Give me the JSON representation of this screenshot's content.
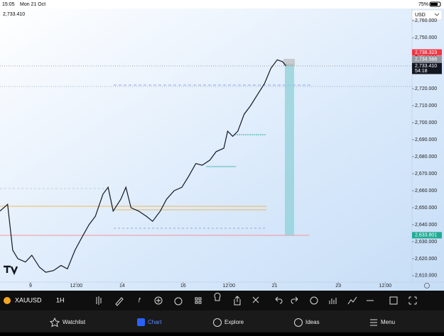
{
  "status_bar": {
    "time": "15:05",
    "date": "Mon 21 Oct",
    "battery": "75%"
  },
  "chart": {
    "type": "line",
    "price_label": "2,733.410",
    "currency": "USD",
    "x": [
      0,
      6,
      10,
      14,
      20,
      25,
      31,
      36,
      42,
      48,
      53,
      59,
      64,
      70,
      75,
      81,
      85,
      89,
      95,
      99,
      103,
      109,
      115,
      120,
      126,
      131,
      137,
      143,
      148,
      154,
      159,
      165,
      170,
      176,
      179,
      183,
      187,
      192,
      197,
      202,
      208,
      213,
      218,
      222,
      225
    ],
    "values": [
      2648,
      2652,
      2625,
      2620,
      2618,
      2622,
      2615,
      2612,
      2613,
      2616,
      2614,
      2625,
      2632,
      2640,
      2645,
      2658,
      2662,
      2648,
      2655,
      2662,
      2650,
      2648,
      2645,
      2642,
      2648,
      2655,
      2660,
      2662,
      2668,
      2676,
      2675,
      2678,
      2683,
      2685,
      2695,
      2692,
      2695,
      2705,
      2710,
      2716,
      2723,
      2732,
      2737,
      2736,
      2733.41
    ],
    "color": "#131722",
    "xlim": [
      0,
      324
    ],
    "ylim": [
      2606.2,
      2767.2
    ],
    "yticks": [
      {
        "value": 2610,
        "label": "2,610.000"
      },
      {
        "value": 2620,
        "label": "2,620.000"
      },
      {
        "value": 2630,
        "label": "2,630.000"
      },
      {
        "value": 2640,
        "label": "2,640.000"
      },
      {
        "value": 2650,
        "label": "2,650.000"
      },
      {
        "value": 2660,
        "label": "2,660.000"
      },
      {
        "value": 2670,
        "label": "2,670.000"
      },
      {
        "value": 2680,
        "label": "2,680.000"
      },
      {
        "value": 2690,
        "label": "2,690.000"
      },
      {
        "value": 2700,
        "label": "2,700.000"
      },
      {
        "value": 2710,
        "label": "2,710.000"
      },
      {
        "value": 2720,
        "label": "2,720.000"
      },
      {
        "value": 2730,
        "label": "2,730.000"
      },
      {
        "value": 2740,
        "label": "2,740.000"
      },
      {
        "value": 2750,
        "label": "2,750.000"
      },
      {
        "value": 2760,
        "label": "2,760.000"
      }
    ],
    "xticks": [
      {
        "value": 24,
        "label": "9"
      },
      {
        "value": 60,
        "label": "12:00"
      },
      {
        "value": 96,
        "label": "14"
      },
      {
        "value": 144,
        "label": "16"
      },
      {
        "value": 180,
        "label": "12:00"
      },
      {
        "value": 216,
        "label": "21"
      },
      {
        "value": 266,
        "label": "23"
      },
      {
        "value": 303,
        "label": "12:00"
      }
    ],
    "price_tags": [
      {
        "value": 2738.323,
        "label": "2,738.323",
        "color": "#f23645"
      },
      {
        "value": 2734.568,
        "label": "2,734.568",
        "color": "#9598a1"
      },
      {
        "value": 2733.41,
        "label": "2,733.410",
        "color": "#131722"
      },
      {
        "value": 2633.801,
        "label": "2,633.801",
        "color": "#22ab94"
      }
    ],
    "countdown": "54:18"
  },
  "toolbar": {
    "symbol": "XAUUSD",
    "interval": "1H"
  },
  "nav": [
    {
      "label": "Watchlist"
    },
    {
      "label": "Chart"
    },
    {
      "label": "Explore"
    },
    {
      "label": "Ideas"
    },
    {
      "label": "Menu"
    }
  ]
}
